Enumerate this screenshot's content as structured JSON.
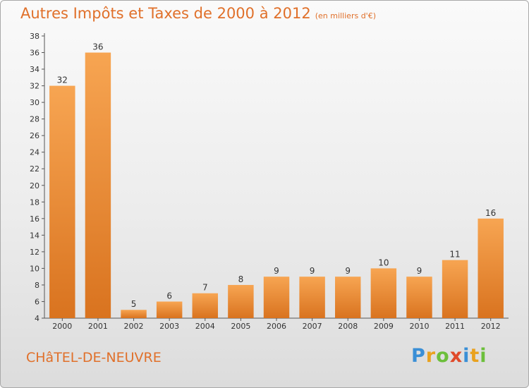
{
  "header": {
    "title": "Autres Impôts et Taxes de 2000 à 2012",
    "subtitle": "(en milliers d'€)"
  },
  "location": "CHâTEL-DE-NEUVRE",
  "logo": {
    "letters": [
      "P",
      "r",
      "o",
      "x",
      "i",
      "t",
      "i"
    ],
    "colors": [
      "#3a8fd6",
      "#e9a21f",
      "#6cbf3b",
      "#e04a2a",
      "#3a8fd6",
      "#e9a21f",
      "#6cbf3b"
    ]
  },
  "chart_data": {
    "type": "bar",
    "categories": [
      "2000",
      "2001",
      "2002",
      "2003",
      "2004",
      "2005",
      "2006",
      "2007",
      "2008",
      "2009",
      "2010",
      "2011",
      "2012"
    ],
    "values": [
      32,
      36,
      5,
      6,
      7,
      8,
      9,
      9,
      9,
      10,
      9,
      11,
      16
    ],
    "ylim": [
      4,
      38
    ],
    "yticks": [
      4,
      6,
      8,
      10,
      12,
      14,
      16,
      18,
      20,
      22,
      24,
      26,
      28,
      30,
      32,
      34,
      36,
      38
    ],
    "grid": false,
    "bar_color": "#f0913a"
  }
}
